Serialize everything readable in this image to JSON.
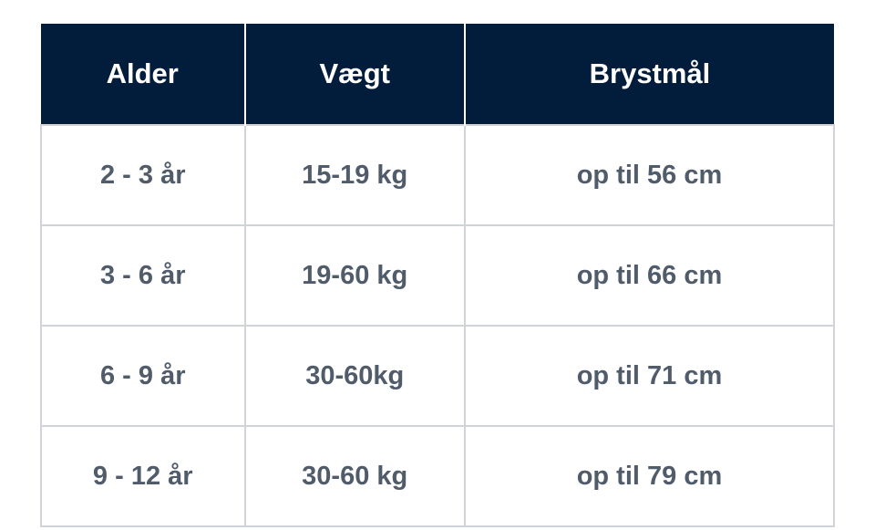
{
  "table": {
    "headers": [
      "Alder",
      "Vægt",
      "Brystmål"
    ],
    "rows": [
      [
        "2 - 3 år",
        "15-19 kg",
        "op til 56 cm"
      ],
      [
        "3 - 6 år",
        "19-60 kg",
        "op til 66 cm"
      ],
      [
        "6 - 9 år",
        "30-60kg",
        "op til 71 cm"
      ],
      [
        "9 - 12 år",
        "30-60 kg",
        "op til 79 cm"
      ]
    ]
  },
  "colors": {
    "header_bg": "#021d3c",
    "header_text": "#ffffff",
    "cell_text": "#515c6b",
    "border": "#d0d3d8"
  }
}
